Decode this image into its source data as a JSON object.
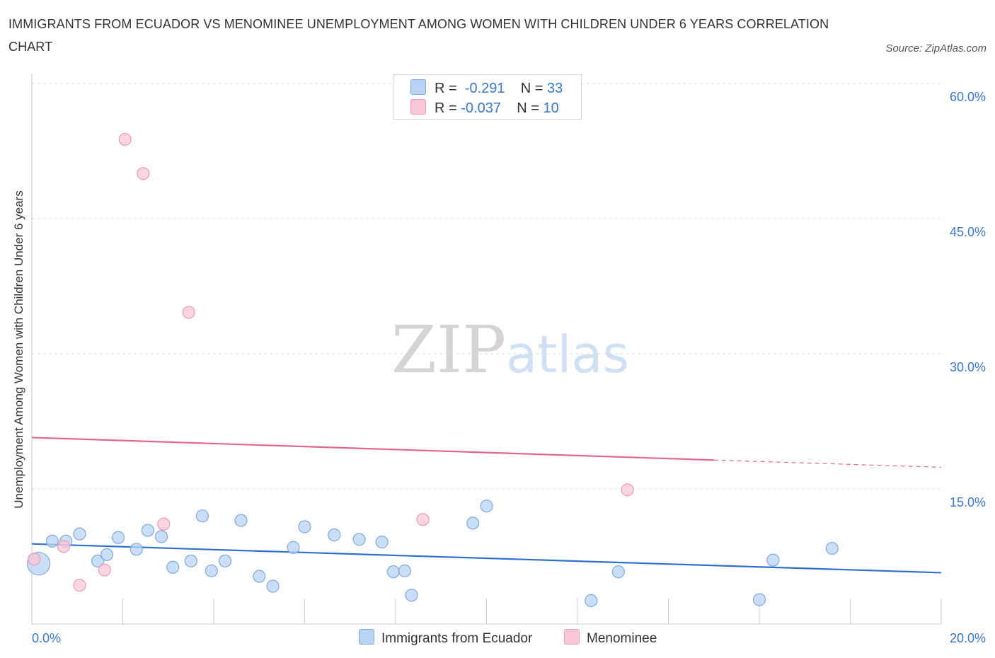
{
  "title": "IMMIGRANTS FROM ECUADOR VS MENOMINEE UNEMPLOYMENT AMONG WOMEN WITH CHILDREN UNDER 6 YEARS CORRELATION CHART",
  "source": "Source: ZipAtlas.com",
  "watermark": {
    "zip": "ZIP",
    "atlas": "atlas"
  },
  "legend": {
    "r_label": "R =",
    "n_label": "N =",
    "rows": [
      {
        "r": "-0.291",
        "n": "33"
      },
      {
        "r": "-0.037",
        "n": "10"
      }
    ]
  },
  "colors": {
    "ecuador_fill": "#b9d3f5",
    "ecuador_stroke": "#7ea9e0",
    "ecuador_line": "#2f6fcf",
    "menominee_fill": "#f8c6d5",
    "menominee_stroke": "#ec9bb5",
    "menominee_line": "#e2668f",
    "axis_text": "#3a78c9",
    "grid": "#dddddd"
  },
  "chart_data": {
    "type": "scatter",
    "title": "IMMIGRANTS FROM ECUADOR VS MENOMINEE UNEMPLOYMENT AMONG WOMEN WITH CHILDREN UNDER 6 YEARS CORRELATION CHART",
    "xlabel": "",
    "ylabel": "Unemployment Among Women with Children Under 6 years",
    "xlim": [
      0,
      20
    ],
    "ylim": [
      0,
      60
    ],
    "x_tick_labels": [
      "0.0%",
      "20.0%"
    ],
    "y_ticks": [
      15,
      30,
      45,
      60
    ],
    "y_tick_labels": [
      "15.0%",
      "30.0%",
      "45.0%",
      "60.0%"
    ],
    "grid": "horizontal dashed",
    "legend_position": "top-center and bottom",
    "series": [
      {
        "name": "Immigrants from Ecuador",
        "R": -0.291,
        "N": 33,
        "points": [
          [
            0.15,
            6.7,
            "large"
          ],
          [
            0.45,
            9.2
          ],
          [
            0.75,
            9.2
          ],
          [
            1.05,
            10.0
          ],
          [
            1.45,
            7.0
          ],
          [
            1.65,
            7.7
          ],
          [
            1.9,
            9.6
          ],
          [
            2.3,
            8.3
          ],
          [
            2.55,
            10.4
          ],
          [
            2.85,
            9.7
          ],
          [
            3.1,
            6.3
          ],
          [
            3.5,
            7.0
          ],
          [
            3.75,
            12.0
          ],
          [
            3.95,
            5.9
          ],
          [
            4.25,
            7.0
          ],
          [
            4.6,
            11.5
          ],
          [
            5.0,
            5.3
          ],
          [
            5.3,
            4.2
          ],
          [
            5.75,
            8.5
          ],
          [
            6.0,
            10.8
          ],
          [
            6.65,
            9.9
          ],
          [
            7.2,
            9.4
          ],
          [
            7.7,
            9.1
          ],
          [
            7.95,
            5.8
          ],
          [
            8.2,
            5.9
          ],
          [
            8.35,
            3.2
          ],
          [
            9.7,
            11.2
          ],
          [
            10.0,
            13.1
          ],
          [
            12.3,
            2.6
          ],
          [
            12.9,
            5.8
          ],
          [
            16.0,
            2.7
          ],
          [
            16.3,
            7.1
          ],
          [
            17.6,
            8.4
          ]
        ],
        "trend": {
          "x": [
            0,
            20
          ],
          "y": [
            8.9,
            5.7
          ]
        }
      },
      {
        "name": "Menominee",
        "R": -0.037,
        "N": 10,
        "points": [
          [
            0.05,
            7.2
          ],
          [
            0.7,
            8.6
          ],
          [
            1.05,
            4.3
          ],
          [
            1.6,
            6.0
          ],
          [
            2.05,
            53.8
          ],
          [
            2.45,
            50.0
          ],
          [
            2.9,
            11.1
          ],
          [
            3.45,
            34.6
          ],
          [
            8.6,
            11.6
          ],
          [
            13.1,
            14.9
          ]
        ],
        "trend": {
          "x": [
            0,
            15
          ],
          "y": [
            20.7,
            18.2
          ]
        },
        "trend_dashed": {
          "x": [
            15,
            20
          ],
          "y": [
            18.2,
            17.4
          ]
        }
      }
    ]
  },
  "bottom_legend": [
    "Immigrants from Ecuador",
    "Menominee"
  ]
}
